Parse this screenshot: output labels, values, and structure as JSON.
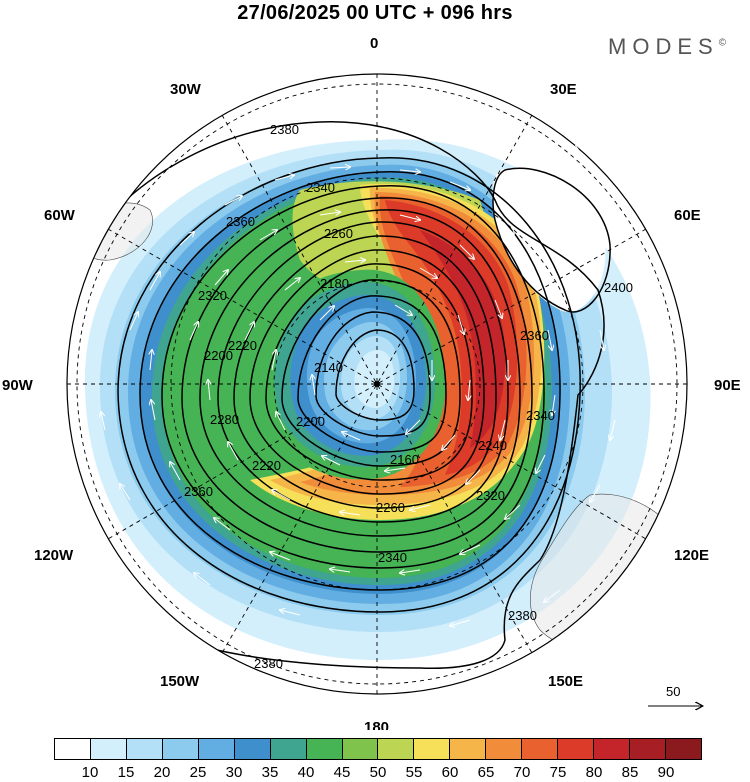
{
  "title": "27/06/2025  00 UTC  + 096 hrs",
  "brand": "MODES",
  "brand_mark": "©",
  "longitude_labels": [
    {
      "text": "0",
      "lon": 0
    },
    {
      "text": "30E",
      "lon": 30
    },
    {
      "text": "60E",
      "lon": 60
    },
    {
      "text": "90E",
      "lon": 90
    },
    {
      "text": "120E",
      "lon": 120
    },
    {
      "text": "150E",
      "lon": 150
    },
    {
      "text": "180",
      "lon": 180
    },
    {
      "text": "150W",
      "lon": -150
    },
    {
      "text": "120W",
      "lon": -120
    },
    {
      "text": "90W",
      "lon": -90
    },
    {
      "text": "60W",
      "lon": -60
    },
    {
      "text": "30W",
      "lon": -30
    }
  ],
  "contour_labels": [
    "2380",
    "2340",
    "2360",
    "2260",
    "2320",
    "2180",
    "2140",
    "2200",
    "2220",
    "2280",
    "2380",
    "2400",
    "2360",
    "2340",
    "2160",
    "2260",
    "2320",
    "2340",
    "2360",
    "2380",
    "2200",
    "2220",
    "2240"
  ],
  "reference_vector": {
    "label": "50"
  },
  "colorbar": {
    "colors": [
      "#ffffff",
      "#d4effc",
      "#b3e0f7",
      "#8ccbee",
      "#62aee2",
      "#3f8fcd",
      "#3fa490",
      "#46b454",
      "#7fc24c",
      "#bcd654",
      "#f6e05a",
      "#f6b548",
      "#f08c3a",
      "#e8612e",
      "#db3b28",
      "#c4252a",
      "#a81e25",
      "#8a1a1e"
    ],
    "ticks": [
      "10",
      "15",
      "20",
      "25",
      "30",
      "35",
      "40",
      "45",
      "50",
      "55",
      "60",
      "65",
      "70",
      "75",
      "80",
      "85",
      "90"
    ]
  }
}
